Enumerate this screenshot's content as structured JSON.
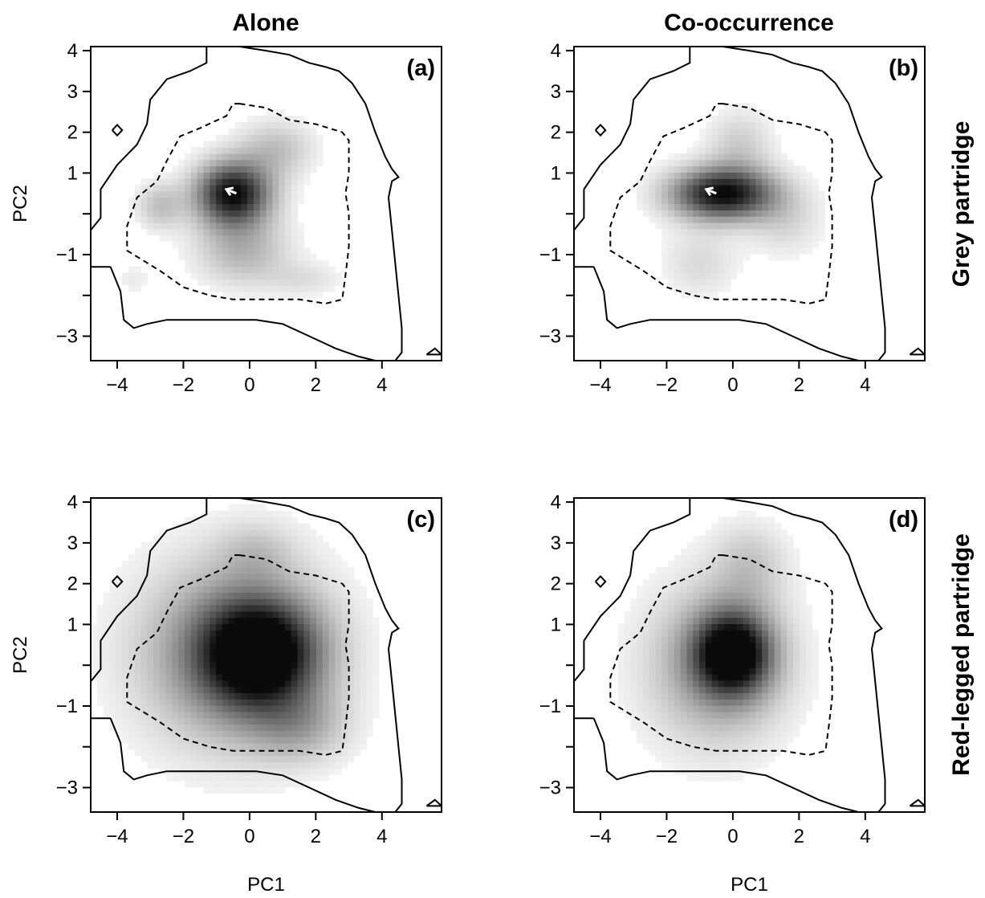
{
  "figure": {
    "column_titles": [
      "Alone",
      "Co-occurrence"
    ],
    "row_titles": [
      "Grey partridge",
      "Red-legged partridge"
    ]
  },
  "chart_data": [
    {
      "type": "heatmap",
      "panel_label": "(a)",
      "xlabel": "",
      "ylabel": "PC2",
      "xlim": [
        -4.8,
        5.8
      ],
      "ylim": [
        -3.6,
        4.1
      ],
      "xticks": [
        -4,
        -2,
        0,
        2,
        4
      ],
      "yticks": [
        4,
        3,
        2,
        1,
        0,
        -1,
        -2,
        -3
      ],
      "ytick_labels": [
        "4",
        "3",
        "2",
        "1",
        "",
        "-1",
        "",
        "-3"
      ],
      "density_blobs": [
        {
          "x": -0.5,
          "y": 0.5,
          "sx": 0.8,
          "sy": 0.55,
          "w": 1.0
        },
        {
          "x": 0.8,
          "y": 1.6,
          "sx": 0.8,
          "sy": 0.5,
          "w": 0.25
        },
        {
          "x": -2.7,
          "y": 0.2,
          "sx": 0.5,
          "sy": 0.4,
          "w": 0.25
        },
        {
          "x": -0.2,
          "y": -0.9,
          "sx": 1.0,
          "sy": 0.6,
          "w": 0.3
        },
        {
          "x": 1.7,
          "y": -1.6,
          "sx": 0.8,
          "sy": 0.3,
          "w": 0.12
        },
        {
          "x": -3.5,
          "y": -1.6,
          "sx": 0.4,
          "sy": 0.3,
          "w": 0.08
        }
      ],
      "niche_shift_arrow": {
        "from": [
          -0.4,
          0.5
        ],
        "to": [
          -0.7,
          0.6
        ]
      }
    },
    {
      "type": "heatmap",
      "panel_label": "(b)",
      "xlabel": "",
      "ylabel": "",
      "xlim": [
        -4.8,
        5.8
      ],
      "ylim": [
        -3.6,
        4.1
      ],
      "xticks": [
        -4,
        -2,
        0,
        2,
        4
      ],
      "yticks": [
        4,
        3,
        2,
        1,
        0,
        -1,
        -2,
        -3
      ],
      "ytick_labels": [
        "4",
        "3",
        "2",
        "1",
        "",
        "-1",
        "",
        "-3"
      ],
      "density_blobs": [
        {
          "x": -0.3,
          "y": 0.5,
          "sx": 1.1,
          "sy": 0.45,
          "w": 1.0
        },
        {
          "x": 0.2,
          "y": 1.7,
          "sx": 0.7,
          "sy": 0.6,
          "w": 0.2
        },
        {
          "x": -1.0,
          "y": -1.2,
          "sx": 0.8,
          "sy": 0.6,
          "w": 0.15
        },
        {
          "x": 1.6,
          "y": -0.2,
          "sx": 0.8,
          "sy": 0.6,
          "w": 0.15
        }
      ],
      "niche_shift_arrow": {
        "from": [
          -0.5,
          0.5
        ],
        "to": [
          -0.8,
          0.6
        ]
      }
    },
    {
      "type": "heatmap",
      "panel_label": "(c)",
      "xlabel": "PC1",
      "ylabel": "PC2",
      "xlim": [
        -4.8,
        5.8
      ],
      "ylim": [
        -3.6,
        4.1
      ],
      "xticks": [
        -4,
        -2,
        0,
        2,
        4
      ],
      "yticks": [
        4,
        3,
        2,
        1,
        0,
        -1,
        -2,
        -3
      ],
      "ytick_labels": [
        "4",
        "3",
        "2",
        "1",
        "",
        "-1",
        "",
        "-3"
      ],
      "density_blobs": [
        {
          "x": 0.3,
          "y": 0.3,
          "sx": 1.2,
          "sy": 0.9,
          "w": 1.0
        },
        {
          "x": -0.5,
          "y": 0.3,
          "sx": 2.0,
          "sy": 1.6,
          "w": 0.5
        },
        {
          "x": 0.2,
          "y": 2.8,
          "sx": 0.8,
          "sy": 0.5,
          "w": 0.15
        },
        {
          "x": 1.5,
          "y": -1.5,
          "sx": 1.0,
          "sy": 0.6,
          "w": 0.25
        }
      ],
      "niche_shift_arrow": null
    },
    {
      "type": "heatmap",
      "panel_label": "(d)",
      "xlabel": "PC1",
      "ylabel": "",
      "xlim": [
        -4.8,
        5.8
      ],
      "ylim": [
        -3.6,
        4.1
      ],
      "xticks": [
        -4,
        -2,
        0,
        2,
        4
      ],
      "yticks": [
        4,
        3,
        2,
        1,
        0,
        -1,
        -2,
        -3
      ],
      "ytick_labels": [
        "4",
        "3",
        "2",
        "1",
        "",
        "-1",
        "",
        "-3"
      ],
      "density_blobs": [
        {
          "x": 0.0,
          "y": 0.3,
          "sx": 0.8,
          "sy": 0.7,
          "w": 1.0
        },
        {
          "x": -0.5,
          "y": 0.0,
          "sx": 1.5,
          "sy": 1.4,
          "w": 0.4
        },
        {
          "x": 0.5,
          "y": 2.5,
          "sx": 0.8,
          "sy": 0.7,
          "w": 0.2
        }
      ],
      "niche_shift_arrow": null
    }
  ],
  "shared_contours": {
    "outer_solid": [
      [
        -4.2,
        -1.3
      ],
      [
        -3.9,
        -1.9
      ],
      [
        -3.8,
        -2.6
      ],
      [
        -3.5,
        -2.8
      ],
      [
        -3.1,
        -2.7
      ],
      [
        -2.5,
        -2.6
      ],
      [
        -1.5,
        -2.6
      ],
      [
        -0.7,
        -2.6
      ],
      [
        0.2,
        -2.6
      ],
      [
        1.0,
        -2.7
      ],
      [
        1.8,
        -3.0
      ],
      [
        2.6,
        -3.3
      ],
      [
        3.3,
        -3.5
      ],
      [
        3.8,
        -3.6
      ],
      [
        4.4,
        -3.6
      ],
      [
        4.6,
        -3.4
      ],
      [
        4.6,
        -2.8
      ],
      [
        4.5,
        -2.0
      ],
      [
        4.4,
        -1.2
      ],
      [
        4.3,
        -0.4
      ],
      [
        4.2,
        0.4
      ],
      [
        4.3,
        0.8
      ],
      [
        4.5,
        0.9
      ],
      [
        4.3,
        1.1
      ],
      [
        4.1,
        1.4
      ],
      [
        3.8,
        2.0
      ],
      [
        3.5,
        2.7
      ],
      [
        3.1,
        3.2
      ],
      [
        2.7,
        3.5
      ],
      [
        2.3,
        3.6
      ],
      [
        1.8,
        3.7
      ],
      [
        1.2,
        3.9
      ],
      [
        0.5,
        4.0
      ],
      [
        -0.3,
        4.1
      ],
      [
        -1.3,
        4.1
      ],
      [
        -1.3,
        3.7
      ],
      [
        -1.8,
        3.5
      ],
      [
        -2.5,
        3.3
      ],
      [
        -3.0,
        2.8
      ],
      [
        -3.1,
        2.2
      ],
      [
        -3.4,
        1.7
      ],
      [
        -4.0,
        1.2
      ],
      [
        -4.5,
        0.6
      ],
      [
        -4.5,
        -0.1
      ],
      [
        -4.8,
        -0.4
      ],
      [
        -4.8,
        -1.3
      ],
      [
        -4.5,
        -1.3
      ],
      [
        -4.2,
        -1.3
      ]
    ],
    "inner_dashed": [
      [
        -0.3,
        2.7
      ],
      [
        0.5,
        2.6
      ],
      [
        1.2,
        2.3
      ],
      [
        2.0,
        2.2
      ],
      [
        2.8,
        2.0
      ],
      [
        3.0,
        1.8
      ],
      [
        3.0,
        1.0
      ],
      [
        2.9,
        0.5
      ],
      [
        3.0,
        0.0
      ],
      [
        3.0,
        -0.8
      ],
      [
        2.9,
        -1.5
      ],
      [
        2.8,
        -2.1
      ],
      [
        2.3,
        -2.2
      ],
      [
        1.5,
        -2.1
      ],
      [
        0.5,
        -2.1
      ],
      [
        -0.5,
        -2.1
      ],
      [
        -1.2,
        -2.0
      ],
      [
        -2.0,
        -1.8
      ],
      [
        -2.7,
        -1.4
      ],
      [
        -3.3,
        -1.1
      ],
      [
        -3.7,
        -0.9
      ],
      [
        -3.7,
        -0.3
      ],
      [
        -3.4,
        0.4
      ],
      [
        -2.8,
        0.8
      ],
      [
        -2.5,
        1.3
      ],
      [
        -2.1,
        1.9
      ],
      [
        -1.5,
        2.1
      ],
      [
        -0.7,
        2.4
      ],
      [
        -0.5,
        2.7
      ],
      [
        -0.3,
        2.7
      ]
    ],
    "small_diamond": [
      [
        -4.15,
        2.05
      ],
      [
        -4.0,
        2.18
      ],
      [
        -3.85,
        2.05
      ],
      [
        -4.0,
        1.92
      ],
      [
        -4.15,
        2.05
      ]
    ],
    "small_triangle": [
      [
        5.35,
        -3.45
      ],
      [
        5.6,
        -3.3
      ],
      [
        5.8,
        -3.45
      ],
      [
        5.35,
        -3.45
      ]
    ]
  }
}
